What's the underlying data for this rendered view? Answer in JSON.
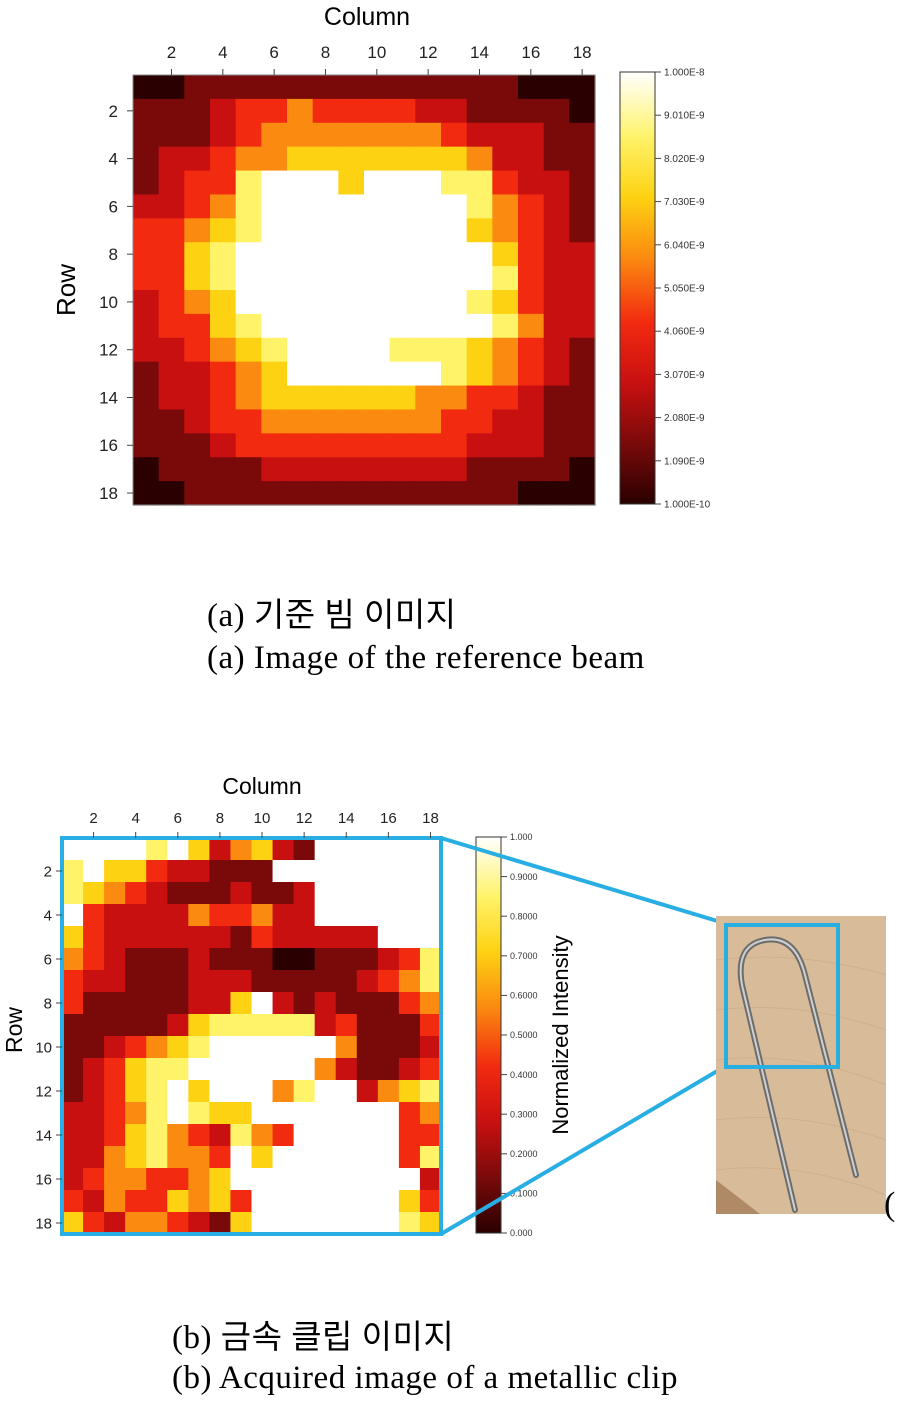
{
  "figure_a": {
    "caption_ko": "(a) 기준 빔 이미지",
    "caption_en": "(a) Image of the reference beam"
  },
  "figure_b": {
    "caption_ko": "(b) 금속 클립 이미지",
    "caption_en": "(b) Acquired image of a metallic clip",
    "trailing_mark": "(",
    "photo_subject": "metallic paper clip on wood"
  },
  "colors": {
    "colormap": [
      "#2a0000",
      "#7a0a0a",
      "#c81010",
      "#f22a10",
      "#fb8a10",
      "#fdd212",
      "#fff36a",
      "#ffffff"
    ],
    "highlight_box": "#29aee4"
  },
  "chart_data": [
    {
      "type": "heatmap",
      "title": "",
      "xlabel": "Column",
      "ylabel": "Row",
      "x_ticks": [
        "2",
        "4",
        "6",
        "8",
        "10",
        "12",
        "14",
        "16",
        "18"
      ],
      "y_ticks": [
        "2",
        "4",
        "6",
        "8",
        "10",
        "12",
        "14",
        "16",
        "18"
      ],
      "colorbar": {
        "label": "",
        "min": 1e-10,
        "max": 1e-08,
        "ticks": [
          "1.000E-8",
          "9.010E-9",
          "8.020E-9",
          "7.030E-9",
          "6.040E-9",
          "5.050E-9",
          "4.060E-9",
          "3.070E-9",
          "2.080E-9",
          "1.090E-9",
          "1.000E-10"
        ]
      },
      "matrix": [
        "001111111111111000",
        "111233433332211110",
        "111234444444322211",
        "122344555555542211",
        "123367775777663221",
        "223467777777764321",
        "334567777777754321",
        "335677777777775322",
        "335677777777776322",
        "234577777777765322",
        "233567777777776422",
        "223456777766654321",
        "122345777777654321",
        "122345555554433211",
        "112334444444332211",
        "111233333333322211",
        "011112222222211110",
        "001111111111111000"
      ]
    },
    {
      "type": "heatmap",
      "title": "",
      "xlabel": "Column",
      "ylabel": "Row",
      "x_ticks": [
        "2",
        "4",
        "6",
        "8",
        "10",
        "12",
        "14",
        "16",
        "18"
      ],
      "y_ticks": [
        "2",
        "4",
        "6",
        "8",
        "10",
        "12",
        "14",
        "16",
        "18"
      ],
      "colorbar": {
        "label": "Normalized Intensity",
        "min": 0.0,
        "max": 1.0,
        "ticks": [
          "1.000",
          "0.9000",
          "0.8000",
          "0.7000",
          "0.6000",
          "0.5000",
          "0.4000",
          "0.3000",
          "0.2000",
          "0.1000",
          "0.000"
        ]
      },
      "matrix": [
        "777767524521777777",
        "675532211177777777",
        "654321112112777777",
        "732222433422777777",
        "532222221322222777",
        "432111211100111236",
        "322111222111112346",
        "311111225721211134",
        "111112566666231113",
        "112345677777741112",
        "123566777777421123",
        "123567577746772456",
        "223467655777777734",
        "223564326437777733",
        "224564437577777736",
        "234433457777777772",
        "324335453777777753",
        "532443215777777765"
      ]
    }
  ]
}
